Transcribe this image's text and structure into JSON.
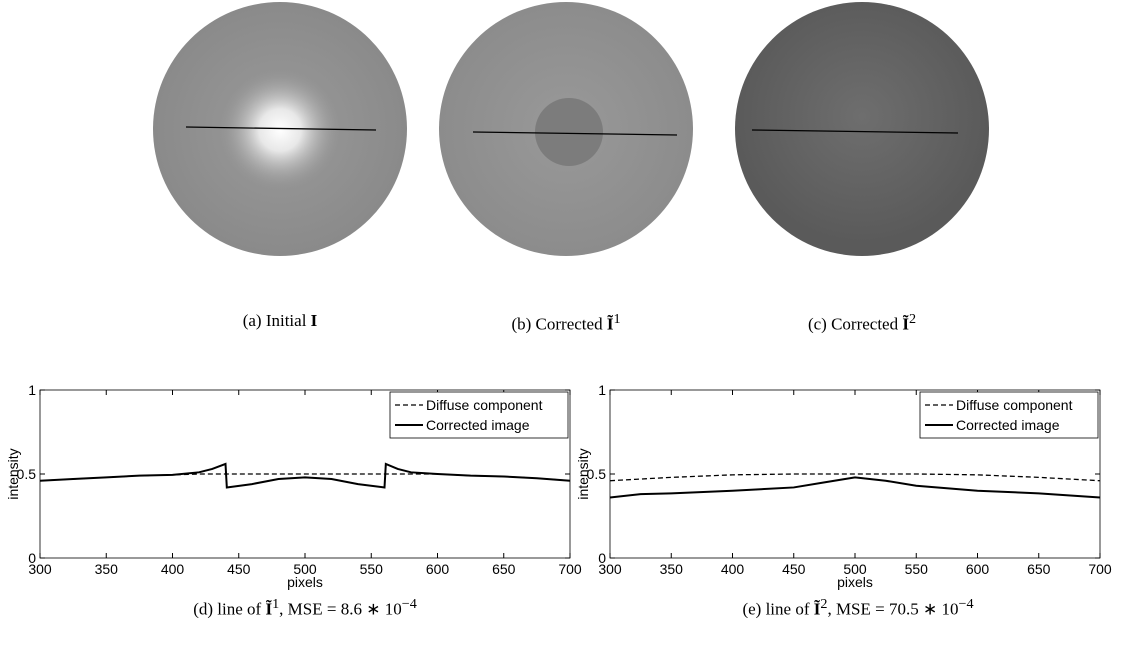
{
  "figures": [
    {
      "text": "(a) Initial",
      "math": "I"
    },
    {
      "text": "(b) Corrected",
      "math": "Ĩ",
      "sup": "1"
    },
    {
      "text": "(c) Corrected",
      "math": "Ĩ",
      "sup": "2"
    },
    {
      "text": "(d) line of",
      "math": "Ĩ",
      "sup": "1",
      "tail": ", MSE = 8.6 ∗ 10",
      "tail_sup": "−4"
    },
    {
      "text": "(e) line of",
      "math": "Ĩ",
      "sup": "2",
      "tail": ", MSE = 70.5 ∗ 10",
      "tail_sup": "−4"
    }
  ],
  "chart_data": [
    {
      "type": "line",
      "x_label": "pixels",
      "y_label": "intensity",
      "x": [
        300,
        325,
        350,
        375,
        400,
        420,
        430,
        440,
        441,
        460,
        480,
        500,
        520,
        540,
        560,
        561,
        570,
        580,
        600,
        625,
        650,
        675,
        700
      ],
      "series": [
        {
          "name": "Diffuse component",
          "color": "#000000",
          "style": "dashed",
          "values": [
            0.46,
            0.47,
            0.48,
            0.49,
            0.495,
            0.5,
            0.5,
            0.5,
            0.5,
            0.5,
            0.5,
            0.5,
            0.5,
            0.5,
            0.5,
            0.5,
            0.5,
            0.5,
            0.5,
            0.49,
            0.485,
            0.475,
            0.46
          ]
        },
        {
          "name": "Corrected image",
          "color": "#000000",
          "style": "solid",
          "values": [
            0.46,
            0.47,
            0.48,
            0.49,
            0.495,
            0.51,
            0.53,
            0.56,
            0.42,
            0.44,
            0.47,
            0.48,
            0.47,
            0.44,
            0.42,
            0.56,
            0.53,
            0.51,
            0.5,
            0.49,
            0.485,
            0.475,
            0.46
          ]
        }
      ],
      "xlim": [
        300,
        700
      ],
      "xticks": [
        300,
        350,
        400,
        450,
        500,
        550,
        600,
        650,
        700
      ],
      "ylim": [
        0,
        1
      ],
      "yticks": [
        0,
        0.5,
        1
      ],
      "legend": "upper right"
    },
    {
      "type": "line",
      "x_label": "pixels",
      "y_label": "intensity",
      "x": [
        300,
        325,
        350,
        400,
        450,
        475,
        500,
        525,
        550,
        600,
        650,
        700
      ],
      "series": [
        {
          "name": "Diffuse component",
          "color": "#000000",
          "style": "dashed",
          "values": [
            0.46,
            0.47,
            0.48,
            0.495,
            0.5,
            0.5,
            0.5,
            0.5,
            0.5,
            0.495,
            0.48,
            0.46
          ]
        },
        {
          "name": "Corrected image",
          "color": "#000000",
          "style": "solid",
          "values": [
            0.36,
            0.38,
            0.385,
            0.4,
            0.42,
            0.45,
            0.48,
            0.46,
            0.43,
            0.4,
            0.385,
            0.36
          ]
        }
      ],
      "xlim": [
        300,
        700
      ],
      "xticks": [
        300,
        350,
        400,
        450,
        500,
        550,
        600,
        650,
        700
      ],
      "ylim": [
        0,
        1
      ],
      "yticks": [
        0,
        0.5,
        1
      ],
      "legend": "upper right"
    }
  ]
}
